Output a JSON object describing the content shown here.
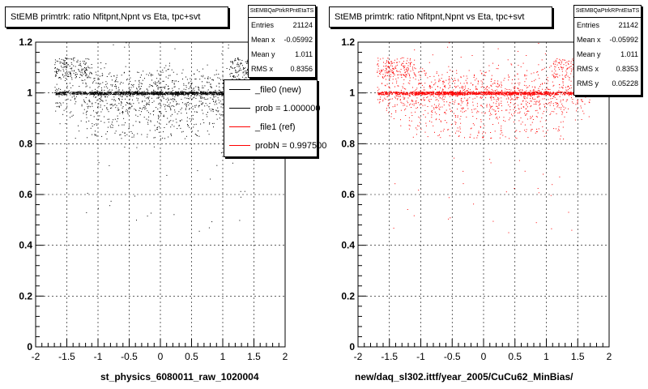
{
  "chart_data": [
    {
      "type": "scatter",
      "title": "StEMB primtrk: ratio Nfitpnt,Npnt vs Eta, tpc+svt",
      "xlabel": "st_physics_6080011_raw_1020004",
      "ylabel": "",
      "xlim": [
        -2,
        2
      ],
      "ylim": [
        0,
        1.2
      ],
      "xticks": [
        "-2",
        "-1.5",
        "-1",
        "-0.5",
        "0",
        "0.5",
        "1",
        "1.5",
        "2"
      ],
      "yticks": [
        "0",
        "0.2",
        "0.4",
        "0.6",
        "0.8",
        "1",
        "1.2"
      ],
      "grid": true,
      "marker_color": "#000000",
      "stats": {
        "name": "StEMBQaPtrkRPntEtaTS",
        "entries_label": "Entries",
        "entries": "21124",
        "meanx_label": "Mean x",
        "meanx": "-0.05992",
        "meany_label": "Mean y",
        "meany": "1.011",
        "rmsx_label": "RMS x",
        "rmsx": "0.8356"
      },
      "legend": [
        {
          "label": "_file0 (new)",
          "color": "#000000"
        },
        {
          "label": "prob = 1.000000",
          "color": "#000000"
        },
        {
          "label": "_file1 (ref)",
          "color": "#ff0000"
        },
        {
          "label": "probN = 0.997500",
          "color": "#ff0000"
        }
      ]
    },
    {
      "type": "scatter",
      "title": "StEMB primtrk: ratio Nfitpnt,Npnt vs Eta, tpc+svt",
      "xlabel": "new/daq_sl302.ittf/year_2005/CuCu62_MinBias/",
      "ylabel": "",
      "xlim": [
        -2,
        2
      ],
      "ylim": [
        0,
        1.2
      ],
      "xticks": [
        "-2",
        "-1.5",
        "-1",
        "-0.5",
        "0",
        "0.5",
        "1",
        "1.5",
        "2"
      ],
      "yticks": [
        "0",
        "0.2",
        "0.4",
        "0.6",
        "0.8",
        "1",
        "1.2"
      ],
      "grid": true,
      "marker_color": "#ff0000",
      "stats": {
        "name": "StEMBQaPtrkRPntEtaTS",
        "entries_label": "Entries",
        "entries": "21142",
        "meanx_label": "Mean x",
        "meanx": "-0.05992",
        "meany_label": "Mean y",
        "meany": "1.011",
        "rmsx_label": "RMS x",
        "rmsx": "0.8353",
        "rmsy_label": "RMS y",
        "rmsy": "0.05228"
      }
    }
  ]
}
